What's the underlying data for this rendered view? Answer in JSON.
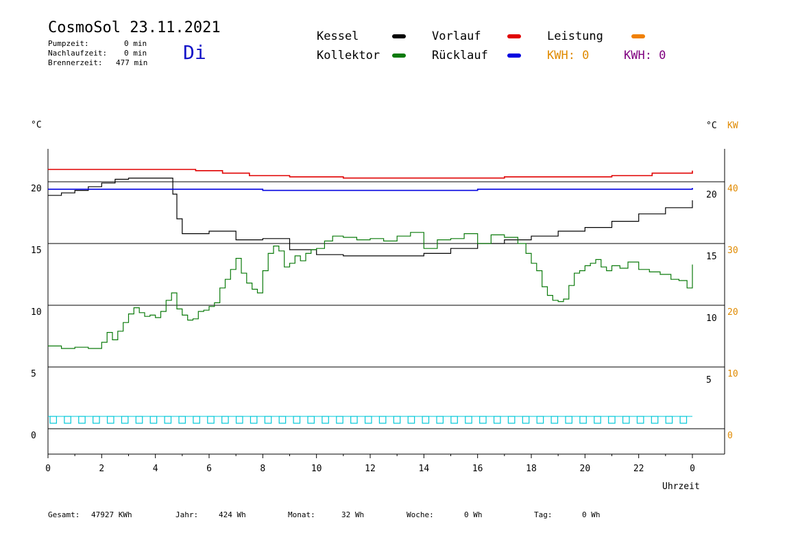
{
  "header": {
    "title": "CosmoSol 23.11.2021",
    "day": "Di",
    "stats": [
      {
        "label": "Pumpzeit:",
        "value": "0 min"
      },
      {
        "label": "Nachlaufzeit:",
        "value": "0 min"
      },
      {
        "label": "Brennerzeit:",
        "value": "477 min"
      }
    ]
  },
  "legend": {
    "kessel": {
      "label": "Kessel",
      "color": "#000000"
    },
    "kollektor": {
      "label": "Kollektor",
      "color": "#0a7a0a"
    },
    "vorlauf": {
      "label": "Vorlauf",
      "color": "#e00000"
    },
    "ruecklauf": {
      "label": "Rücklauf",
      "color": "#0000e0"
    },
    "leistung": {
      "label": "Leistung",
      "color": "#f08000"
    },
    "kwh1": {
      "label": "KWH: 0",
      "color": "#e08a00"
    },
    "kwh2": {
      "label": "KWH: 0",
      "color": "#800080"
    }
  },
  "axes": {
    "left_unit": "°C",
    "right_unit1": "°C",
    "right_unit2": "KW",
    "x_title": "Uhrzeit"
  },
  "footer": {
    "gesamt": {
      "label": "Gesamt:",
      "value": "47927 KWh"
    },
    "jahr": {
      "label": "Jahr:",
      "value": "424 Wh"
    },
    "monat": {
      "label": "Monat:",
      "value": "32 Wh"
    },
    "woche": {
      "label": "Woche:",
      "value": "0 Wh"
    },
    "tag": {
      "label": "Tag:",
      "value": "0 Wh"
    }
  },
  "chart_data": {
    "type": "line",
    "xlabel": "Uhrzeit",
    "ylabel": "°C",
    "xlim": [
      0,
      24
    ],
    "ylim": [
      0,
      20
    ],
    "x_ticks": [
      "0",
      "2",
      "4",
      "6",
      "8",
      "10",
      "12",
      "14",
      "16",
      "18",
      "20",
      "22",
      "0"
    ],
    "y_ticks_left": [
      "0",
      "5",
      "10",
      "15",
      "20"
    ],
    "y_ticks_right_c": [
      "5",
      "10",
      "15",
      "20"
    ],
    "y_ticks_right_kw": [
      "0",
      "10",
      "20",
      "30",
      "40"
    ],
    "grid": true,
    "series": [
      {
        "name": "Kessel",
        "color": "#000000",
        "x": [
          0,
          0.5,
          1,
          1.5,
          2,
          2.5,
          3,
          4,
          4.6,
          4.65,
          4.8,
          5,
          6,
          6.5,
          7,
          8,
          9,
          10,
          11,
          12,
          13,
          14,
          15,
          16,
          17,
          18,
          19,
          20,
          21,
          22,
          23,
          24
        ],
        "y": [
          18.9,
          19.1,
          19.3,
          19.6,
          19.9,
          20.2,
          20.3,
          20.3,
          20.3,
          19.0,
          17.0,
          15.8,
          16.0,
          16.0,
          15.3,
          15.4,
          14.5,
          14.1,
          14.0,
          14.0,
          14.0,
          14.2,
          14.6,
          15.0,
          15.3,
          15.6,
          16.0,
          16.3,
          16.8,
          17.4,
          17.9,
          18.5
        ]
      },
      {
        "name": "Kollektor",
        "color": "#0a7a0a",
        "x": [
          0,
          0.5,
          1,
          1.5,
          2,
          2.2,
          2.4,
          2.6,
          2.8,
          3,
          3.2,
          3.4,
          3.6,
          3.8,
          4,
          4.2,
          4.4,
          4.6,
          4.8,
          5,
          5.2,
          5.4,
          5.6,
          5.8,
          6,
          6.2,
          6.4,
          6.6,
          6.8,
          7,
          7.2,
          7.4,
          7.6,
          7.8,
          8,
          8.2,
          8.4,
          8.6,
          8.8,
          9,
          9.2,
          9.4,
          9.6,
          9.8,
          10,
          10.3,
          10.6,
          11,
          11.5,
          12,
          12.5,
          13,
          13.5,
          14,
          14.5,
          15,
          15.5,
          16,
          16.5,
          17,
          17.5,
          17.8,
          18,
          18.2,
          18.4,
          18.6,
          18.8,
          19,
          19.2,
          19.4,
          19.6,
          19.8,
          20,
          20.2,
          20.4,
          20.6,
          20.8,
          21,
          21.3,
          21.6,
          22,
          22.4,
          22.8,
          23.2,
          23.5,
          23.8,
          24
        ],
        "y": [
          6.7,
          6.5,
          6.6,
          6.5,
          7.0,
          7.8,
          7.2,
          7.9,
          8.6,
          9.3,
          9.8,
          9.4,
          9.1,
          9.2,
          9.0,
          9.5,
          10.4,
          11.0,
          9.7,
          9.2,
          8.8,
          8.9,
          9.5,
          9.6,
          9.9,
          10.2,
          11.4,
          12.1,
          12.9,
          13.8,
          12.6,
          11.8,
          11.3,
          11.0,
          12.8,
          14.2,
          14.8,
          14.4,
          13.1,
          13.4,
          14.0,
          13.6,
          14.2,
          14.5,
          14.6,
          15.2,
          15.6,
          15.5,
          15.3,
          15.4,
          15.2,
          15.6,
          15.9,
          14.6,
          15.3,
          15.4,
          15.8,
          15.0,
          15.7,
          15.5,
          15.0,
          14.2,
          13.4,
          12.8,
          11.5,
          10.8,
          10.4,
          10.3,
          10.5,
          11.6,
          12.6,
          12.8,
          13.2,
          13.4,
          13.7,
          13.1,
          12.8,
          13.2,
          13.0,
          13.5,
          12.9,
          12.7,
          12.5,
          12.1,
          12.0,
          11.4,
          13.3
        ]
      },
      {
        "name": "Vorlauf",
        "color": "#e00000",
        "x": [
          0,
          2,
          4,
          4.6,
          5.5,
          6.5,
          7.5,
          9,
          11,
          13,
          15,
          17,
          19,
          21,
          22.5,
          24
        ],
        "y": [
          21.0,
          21.0,
          21.0,
          21.0,
          20.9,
          20.7,
          20.5,
          20.4,
          20.3,
          20.3,
          20.3,
          20.4,
          20.4,
          20.5,
          20.7,
          20.9
        ]
      },
      {
        "name": "Rücklauf",
        "color": "#0000e0",
        "x": [
          0,
          2,
          4,
          6,
          8,
          10,
          12,
          14,
          16,
          18,
          20,
          22,
          24
        ],
        "y": [
          19.4,
          19.4,
          19.4,
          19.4,
          19.3,
          19.3,
          19.3,
          19.3,
          19.4,
          19.4,
          19.4,
          19.4,
          19.5
        ]
      }
    ],
    "pump_pulses": {
      "name": "Pumpe",
      "color": "#00c8d8",
      "baseline": 0,
      "height": 1,
      "count": 45
    }
  }
}
